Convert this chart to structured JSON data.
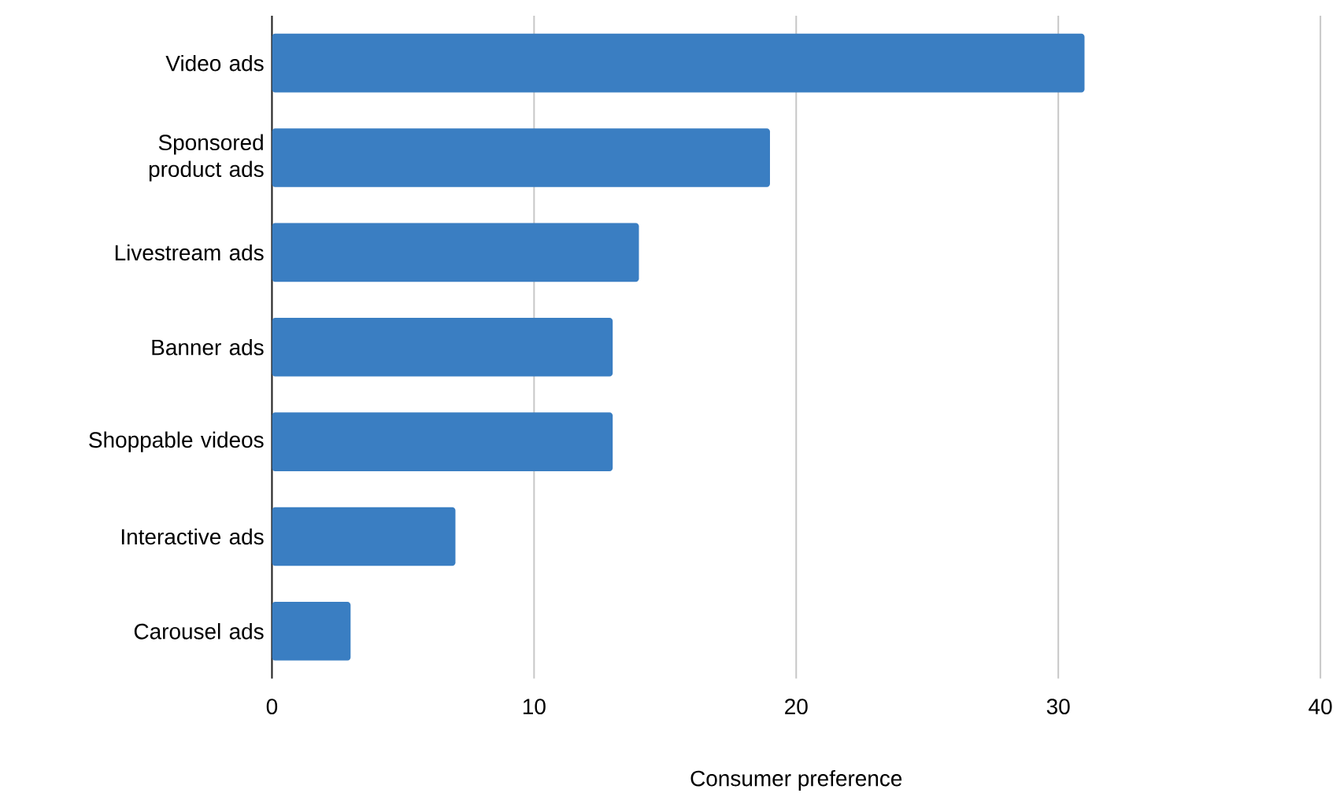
{
  "chart_data": {
    "type": "bar",
    "orientation": "horizontal",
    "xlabel": "Consumer preference",
    "categories": [
      "Video ads",
      "Sponsored product ads",
      "Livestream ads",
      "Banner ads",
      "Shoppable videos",
      "Interactive ads",
      "Carousel ads"
    ],
    "values": [
      31,
      19,
      14,
      13,
      13,
      7,
      3
    ],
    "color": "#3a7ec2",
    "xlim": [
      0,
      40
    ],
    "xticks": [
      0,
      10,
      20,
      30,
      40
    ],
    "grid": "x"
  }
}
